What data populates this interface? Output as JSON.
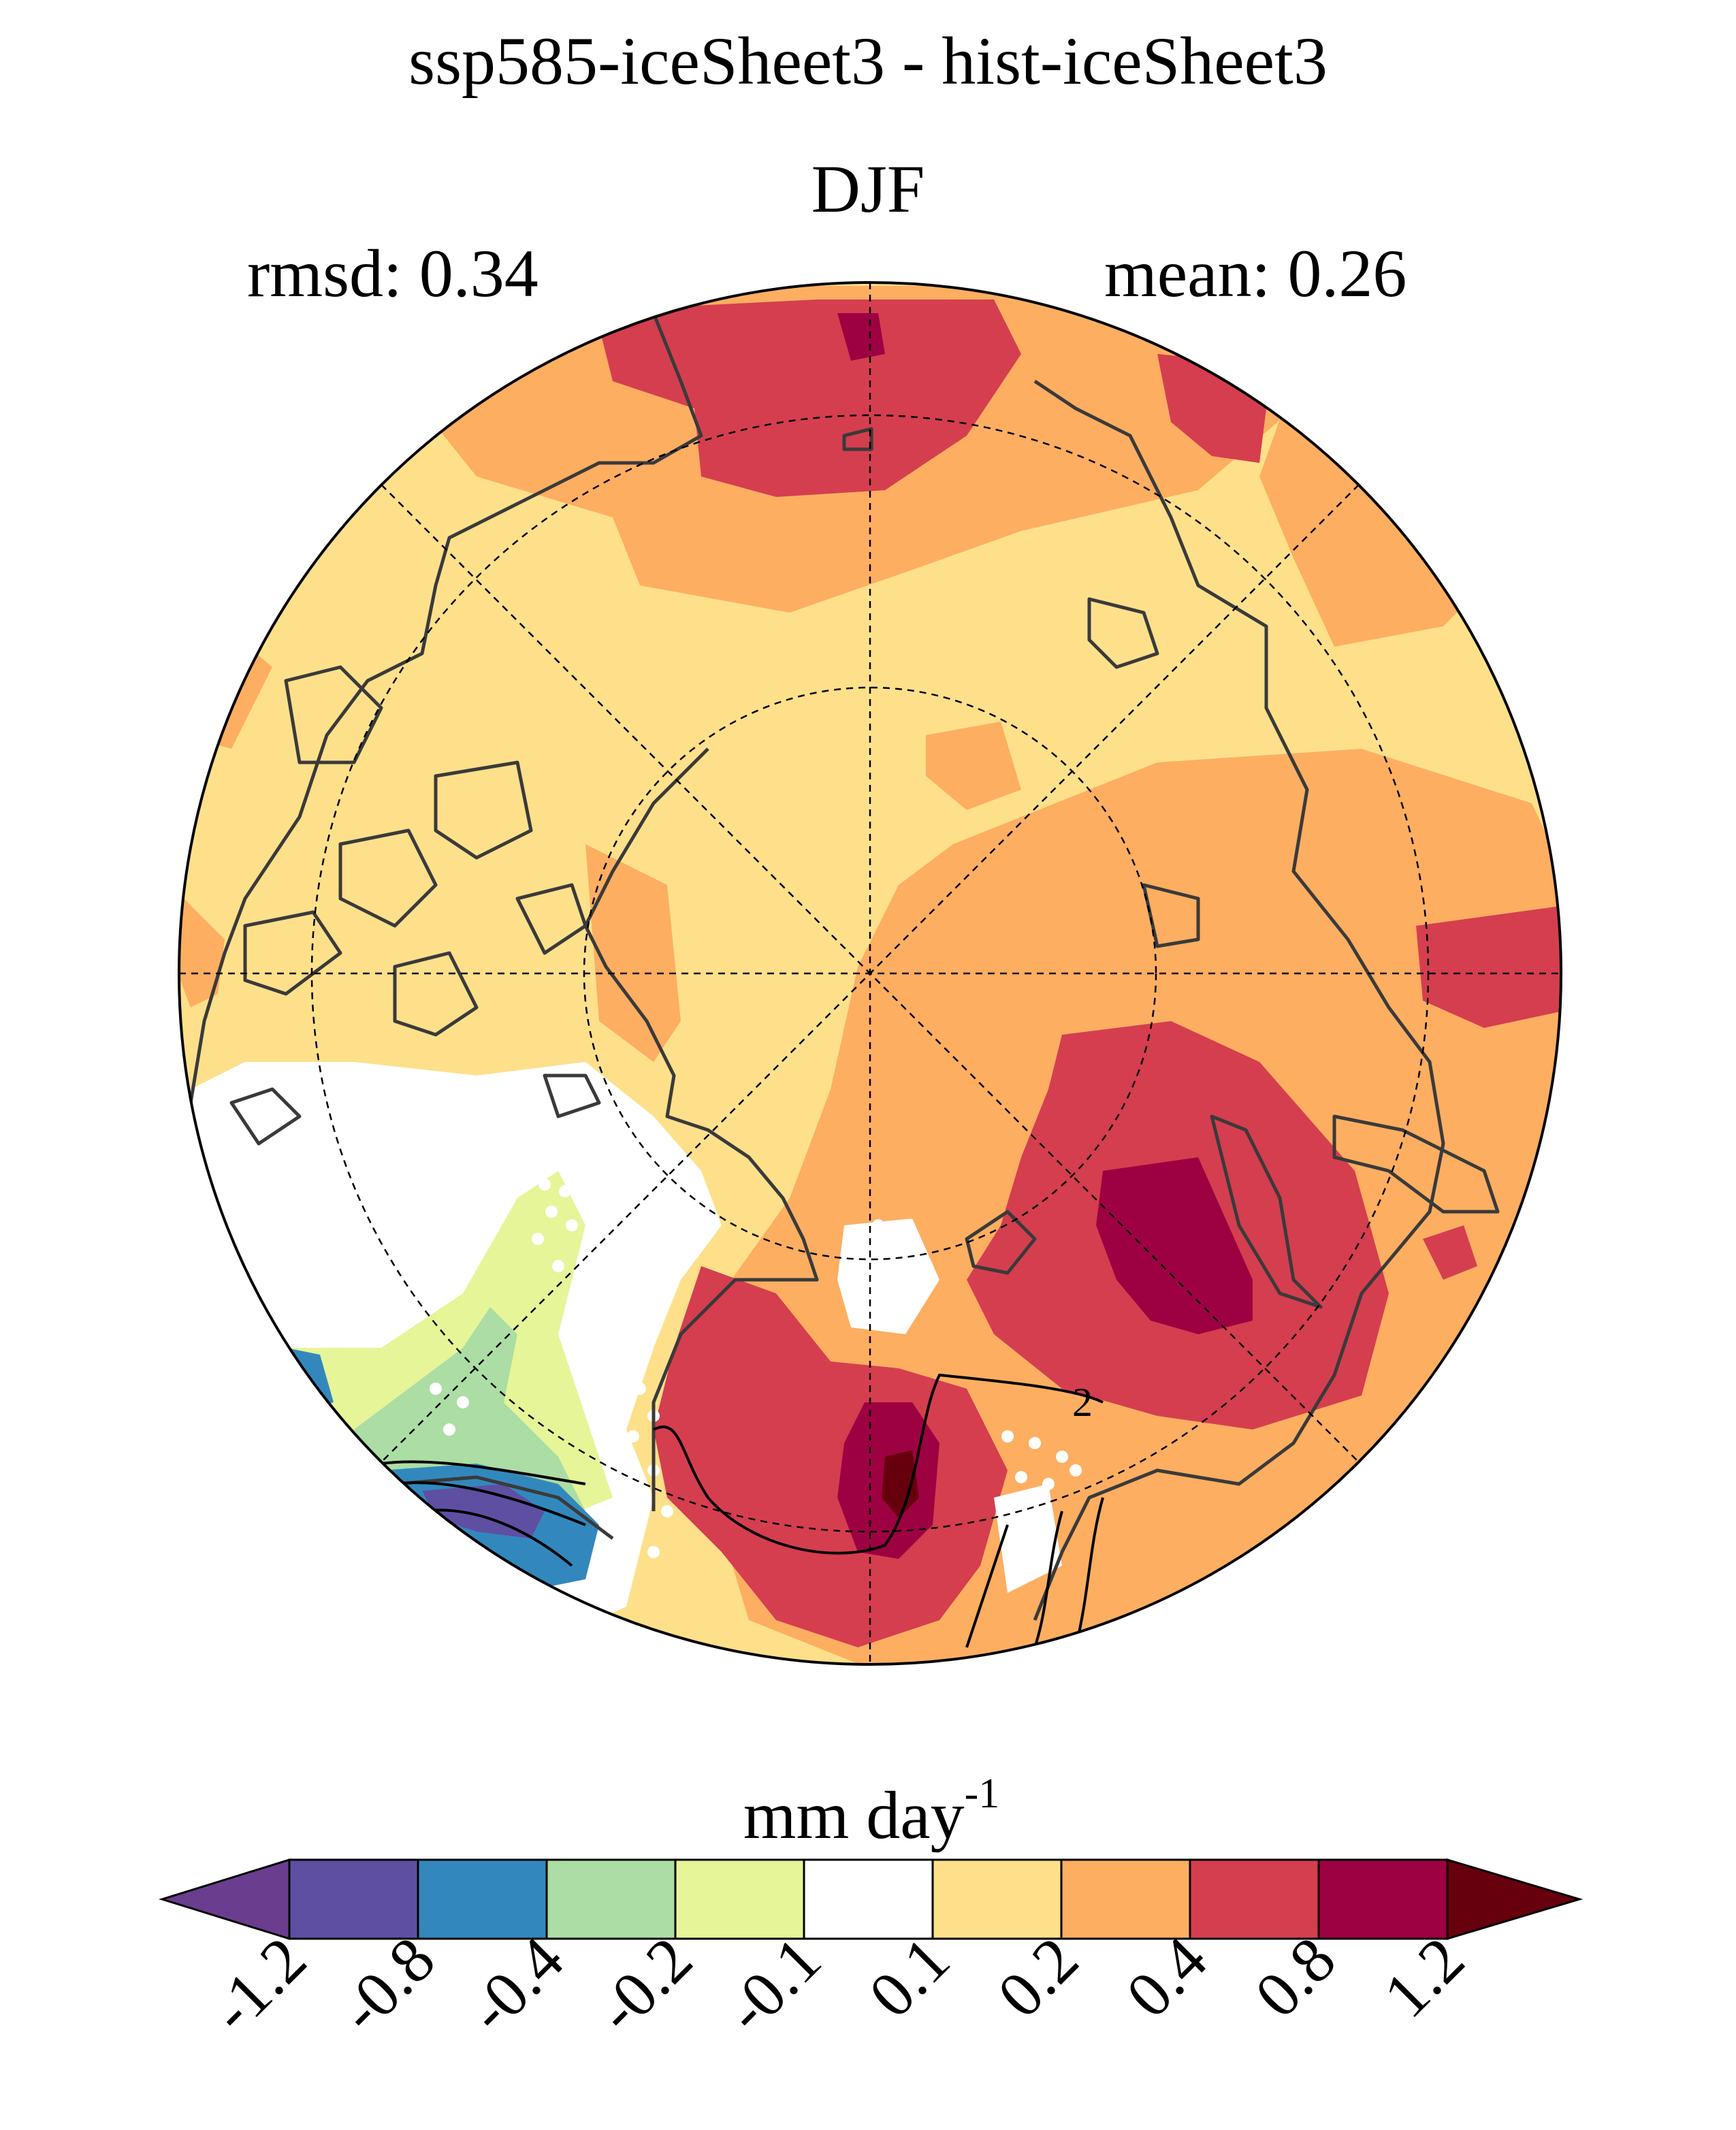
{
  "header": {
    "title": "ssp585-iceSheet3 - hist-iceSheet3",
    "season": "DJF",
    "rmsd": "rmsd: 0.34",
    "mean": "mean: 0.26"
  },
  "contour_label": "2",
  "colorbar": {
    "unit_base": "mm day",
    "unit_exp": "-1",
    "ticks": [
      "-1.2",
      "-0.8",
      "-0.4",
      "-0.2",
      "-0.1",
      "0.1",
      "0.2",
      "0.4",
      "0.8",
      "1.2"
    ],
    "colors": {
      "lt_-1.2": "#6a3d8f",
      "-1.2_-0.8": "#5e4fa2",
      "-0.8_-0.4": "#3288bd",
      "-0.4_-0.2": "#abdda4",
      "-0.2_-0.1": "#e6f598",
      "-0.1_0.1": "#ffffff",
      "0.1_0.2": "#fee08b",
      "0.2_0.4": "#fdae61",
      "0.4_0.8": "#d53e4f",
      "0.8_1.2": "#9e0142",
      "gt_1.2": "#67000d"
    }
  }
}
